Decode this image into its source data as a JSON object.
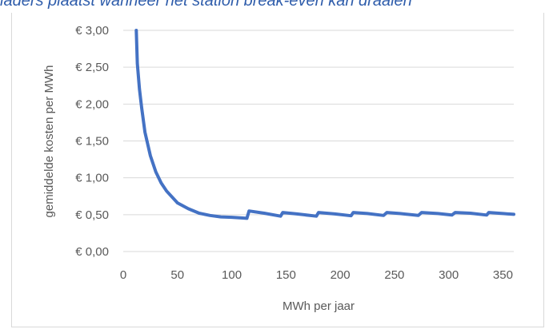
{
  "header": {
    "title": "laders plaatst wanneer het station break-even kan draaien"
  },
  "chart_data": {
    "type": "line",
    "xlabel": "MWh per jaar",
    "ylabel": "gemiddelde kosten per MWh",
    "xlim": [
      0,
      360
    ],
    "ylim": [
      0,
      3
    ],
    "x_ticks": [
      "0",
      "50",
      "100",
      "150",
      "200",
      "250",
      "300",
      "350"
    ],
    "y_ticks": [
      "€ 0,00",
      "€ 0,50",
      "€ 1,00",
      "€ 1,50",
      "€ 2,00",
      "€ 2,50",
      "€ 3,00"
    ],
    "grid": "horizontal",
    "legend": "none",
    "series_color": "#4472c4",
    "series": [
      {
        "x": [
          12,
          13,
          15,
          17,
          20,
          25,
          30,
          35,
          40,
          50,
          60,
          70,
          80,
          90,
          100,
          110,
          114,
          116,
          130,
          145,
          147,
          160,
          178,
          180,
          195,
          210,
          212,
          225,
          240,
          243,
          255,
          272,
          275,
          290,
          303,
          306,
          320,
          335,
          337,
          350,
          360
        ],
        "y": [
          3.0,
          2.55,
          2.2,
          1.95,
          1.62,
          1.3,
          1.08,
          0.93,
          0.82,
          0.66,
          0.58,
          0.52,
          0.49,
          0.47,
          0.465,
          0.455,
          0.45,
          0.55,
          0.52,
          0.48,
          0.53,
          0.51,
          0.48,
          0.53,
          0.51,
          0.485,
          0.53,
          0.515,
          0.49,
          0.53,
          0.515,
          0.49,
          0.53,
          0.515,
          0.495,
          0.53,
          0.52,
          0.495,
          0.53,
          0.515,
          0.505
        ]
      }
    ]
  }
}
